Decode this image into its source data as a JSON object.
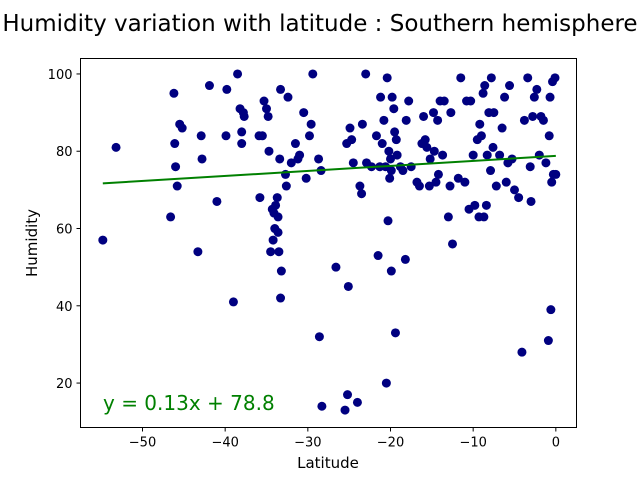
{
  "chart_data": {
    "type": "scatter",
    "title": "Humidity variation with latitude : Southern hemisphere",
    "xlabel": "Latitude",
    "ylabel": "Humidity",
    "xlim": [
      -57.5,
      2.5
    ],
    "ylim": [
      8.5,
      104
    ],
    "xticks": [
      -50,
      -40,
      -30,
      -20,
      -10,
      0
    ],
    "yticks": [
      20,
      40,
      60,
      80,
      100
    ],
    "xtick_labels": [
      "−50",
      "−40",
      "−30",
      "−20",
      "−10",
      "0"
    ],
    "ytick_labels": [
      "20",
      "40",
      "60",
      "80",
      "100"
    ],
    "grid": false,
    "point_color": "#000080",
    "line_color": "#008000",
    "regression": {
      "slope": 0.13,
      "intercept": 78.8,
      "x_range": [
        -54.8,
        0
      ],
      "equation": "y = 0.13x + 78.8"
    },
    "points": [
      [
        -54.8,
        57
      ],
      [
        -53.2,
        81
      ],
      [
        -46.6,
        63
      ],
      [
        -46.2,
        95
      ],
      [
        -46.1,
        82
      ],
      [
        -46.0,
        76
      ],
      [
        -45.8,
        71
      ],
      [
        -45.5,
        87
      ],
      [
        -45.2,
        86
      ],
      [
        -43.3,
        54
      ],
      [
        -42.9,
        84
      ],
      [
        -42.8,
        78
      ],
      [
        -41.9,
        97
      ],
      [
        -41.0,
        67
      ],
      [
        -39.9,
        84
      ],
      [
        -39.8,
        96
      ],
      [
        -39.0,
        41
      ],
      [
        -38.5,
        100
      ],
      [
        -38.2,
        91
      ],
      [
        -38.0,
        85
      ],
      [
        -38.0,
        82
      ],
      [
        -37.8,
        90
      ],
      [
        -37.7,
        89
      ],
      [
        -35.9,
        84
      ],
      [
        -35.8,
        68
      ],
      [
        -35.5,
        84
      ],
      [
        -35.3,
        93
      ],
      [
        -35.0,
        91
      ],
      [
        -34.8,
        89
      ],
      [
        -34.7,
        80
      ],
      [
        -34.5,
        54
      ],
      [
        -34.3,
        65
      ],
      [
        -34.2,
        57
      ],
      [
        -34.1,
        64
      ],
      [
        -34.0,
        60
      ],
      [
        -33.9,
        66
      ],
      [
        -33.7,
        68
      ],
      [
        -33.6,
        63
      ],
      [
        -33.6,
        59
      ],
      [
        -33.5,
        54
      ],
      [
        -33.4,
        78
      ],
      [
        -33.3,
        42
      ],
      [
        -33.3,
        96
      ],
      [
        -33.2,
        49
      ],
      [
        -32.7,
        74
      ],
      [
        -32.6,
        71
      ],
      [
        -32.4,
        94
      ],
      [
        -32.0,
        77
      ],
      [
        -31.5,
        82
      ],
      [
        -31.2,
        78
      ],
      [
        -31.0,
        79
      ],
      [
        -30.5,
        90
      ],
      [
        -30.2,
        73
      ],
      [
        -29.8,
        84
      ],
      [
        -29.6,
        87
      ],
      [
        -29.4,
        100
      ],
      [
        -28.7,
        78
      ],
      [
        -28.6,
        32
      ],
      [
        -28.4,
        75
      ],
      [
        -28.3,
        14
      ],
      [
        -26.6,
        50
      ],
      [
        -25.5,
        13
      ],
      [
        -25.3,
        82
      ],
      [
        -25.2,
        17
      ],
      [
        -25.1,
        45
      ],
      [
        -24.9,
        86
      ],
      [
        -24.7,
        83
      ],
      [
        -24.5,
        77
      ],
      [
        -24.0,
        15
      ],
      [
        -23.7,
        71
      ],
      [
        -23.5,
        69
      ],
      [
        -23.4,
        87
      ],
      [
        -23.0,
        100
      ],
      [
        -22.9,
        77
      ],
      [
        -22.3,
        76
      ],
      [
        -21.7,
        84
      ],
      [
        -21.5,
        53
      ],
      [
        -21.3,
        76
      ],
      [
        -21.2,
        94
      ],
      [
        -21.0,
        82
      ],
      [
        -20.8,
        88
      ],
      [
        -20.6,
        76
      ],
      [
        -20.5,
        20
      ],
      [
        -20.4,
        99
      ],
      [
        -20.3,
        62
      ],
      [
        -20.2,
        80
      ],
      [
        -20.1,
        73
      ],
      [
        -20.0,
        78
      ],
      [
        -19.9,
        75
      ],
      [
        -19.9,
        49
      ],
      [
        -19.8,
        94
      ],
      [
        -19.6,
        91
      ],
      [
        -19.5,
        85
      ],
      [
        -19.4,
        33
      ],
      [
        -19.3,
        83
      ],
      [
        -19.2,
        79
      ],
      [
        -18.8,
        76
      ],
      [
        -18.5,
        75
      ],
      [
        -18.2,
        52
      ],
      [
        -18.1,
        88
      ],
      [
        -17.8,
        93
      ],
      [
        -17.5,
        76
      ],
      [
        -16.8,
        72
      ],
      [
        -16.5,
        71
      ],
      [
        -16.2,
        82
      ],
      [
        -16.0,
        89
      ],
      [
        -15.8,
        83
      ],
      [
        -15.6,
        81
      ],
      [
        -15.3,
        71
      ],
      [
        -15.2,
        78
      ],
      [
        -14.8,
        90
      ],
      [
        -14.7,
        80
      ],
      [
        -14.5,
        72
      ],
      [
        -14.3,
        88
      ],
      [
        -14.2,
        74
      ],
      [
        -14.0,
        93
      ],
      [
        -13.7,
        79
      ],
      [
        -13.5,
        93
      ],
      [
        -13.0,
        63
      ],
      [
        -12.8,
        71
      ],
      [
        -12.7,
        90
      ],
      [
        -12.5,
        56
      ],
      [
        -11.8,
        73
      ],
      [
        -11.5,
        99
      ],
      [
        -11.0,
        72
      ],
      [
        -10.8,
        93
      ],
      [
        -10.5,
        65
      ],
      [
        -10.3,
        93
      ],
      [
        -10.0,
        79
      ],
      [
        -9.8,
        66
      ],
      [
        -9.5,
        83
      ],
      [
        -9.3,
        63
      ],
      [
        -9.2,
        87
      ],
      [
        -9.0,
        84
      ],
      [
        -8.8,
        95
      ],
      [
        -8.7,
        63
      ],
      [
        -8.6,
        97
      ],
      [
        -8.4,
        66
      ],
      [
        -8.3,
        79
      ],
      [
        -8.1,
        90
      ],
      [
        -7.9,
        75
      ],
      [
        -7.8,
        99
      ],
      [
        -7.6,
        81
      ],
      [
        -7.5,
        90
      ],
      [
        -7.2,
        71
      ],
      [
        -6.8,
        79
      ],
      [
        -6.5,
        86
      ],
      [
        -6.2,
        94
      ],
      [
        -6.0,
        72
      ],
      [
        -5.8,
        77
      ],
      [
        -5.6,
        97
      ],
      [
        -5.3,
        78
      ],
      [
        -5.0,
        70
      ],
      [
        -4.5,
        68
      ],
      [
        -4.1,
        28
      ],
      [
        -3.8,
        88
      ],
      [
        -3.4,
        99
      ],
      [
        -3.1,
        76
      ],
      [
        -3.0,
        67
      ],
      [
        -2.8,
        89
      ],
      [
        -2.6,
        94
      ],
      [
        -2.3,
        96
      ],
      [
        -2.0,
        79
      ],
      [
        -1.8,
        89
      ],
      [
        -1.5,
        88
      ],
      [
        -1.2,
        77
      ],
      [
        -0.9,
        31
      ],
      [
        -0.8,
        84
      ],
      [
        -0.7,
        94
      ],
      [
        -0.6,
        39
      ],
      [
        -0.5,
        72
      ],
      [
        -0.4,
        98
      ],
      [
        -0.3,
        74
      ],
      [
        -0.1,
        99
      ],
      [
        0.0,
        74
      ]
    ]
  }
}
